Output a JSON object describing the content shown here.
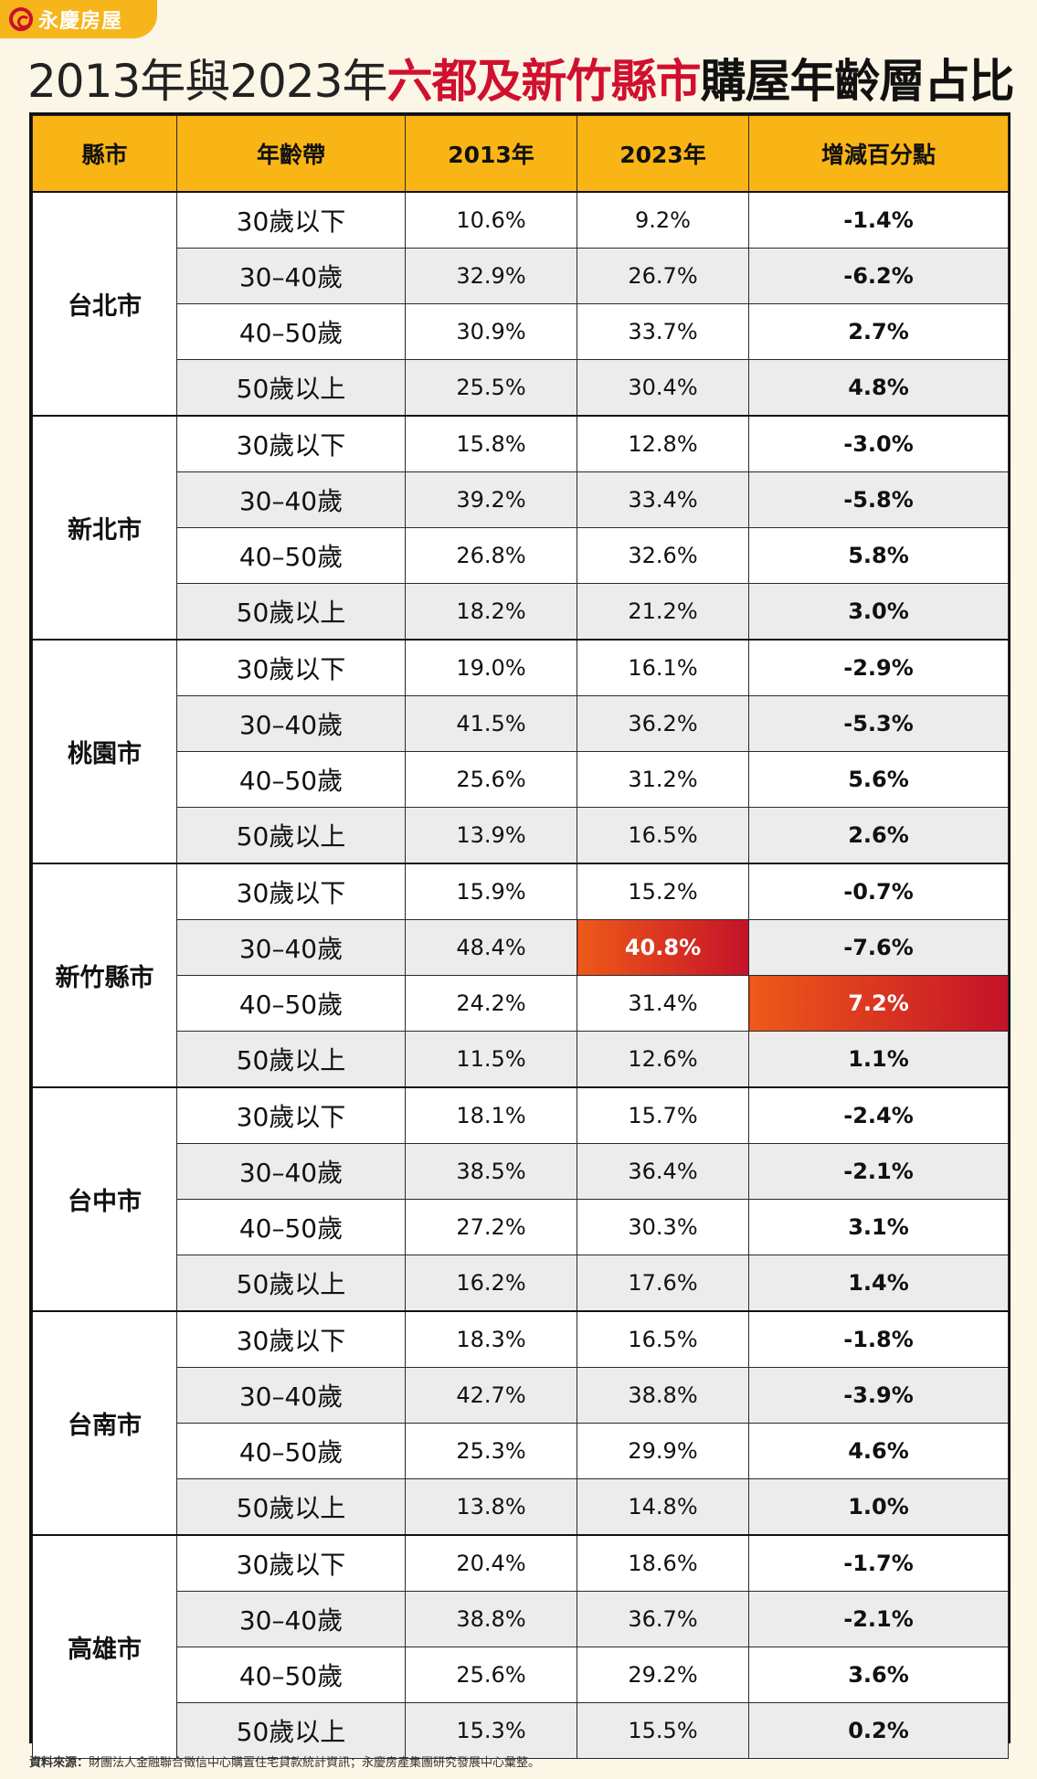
{
  "logo": {
    "text": "永慶房屋"
  },
  "title": {
    "part1": "2013年與2023年",
    "part2": "六都及新竹縣市",
    "part3": "購屋年齡層占比"
  },
  "table": {
    "headers": [
      "縣市",
      "年齡帶",
      "2013年",
      "2023年",
      "增減百分點"
    ],
    "groups": [
      {
        "city": "台北市",
        "rows": [
          {
            "age": "30歲以下",
            "y2013": "10.6%",
            "y2023": "9.2%",
            "change": "-1.4%"
          },
          {
            "age": "30–40歲",
            "y2013": "32.9%",
            "y2023": "26.7%",
            "change": "-6.2%"
          },
          {
            "age": "40–50歲",
            "y2013": "30.9%",
            "y2023": "33.7%",
            "change": "2.7%"
          },
          {
            "age": "50歲以上",
            "y2013": "25.5%",
            "y2023": "30.4%",
            "change": "4.8%"
          }
        ]
      },
      {
        "city": "新北市",
        "rows": [
          {
            "age": "30歲以下",
            "y2013": "15.8%",
            "y2023": "12.8%",
            "change": "-3.0%"
          },
          {
            "age": "30–40歲",
            "y2013": "39.2%",
            "y2023": "33.4%",
            "change": "-5.8%"
          },
          {
            "age": "40–50歲",
            "y2013": "26.8%",
            "y2023": "32.6%",
            "change": "5.8%"
          },
          {
            "age": "50歲以上",
            "y2013": "18.2%",
            "y2023": "21.2%",
            "change": "3.0%"
          }
        ]
      },
      {
        "city": "桃園市",
        "rows": [
          {
            "age": "30歲以下",
            "y2013": "19.0%",
            "y2023": "16.1%",
            "change": "-2.9%"
          },
          {
            "age": "30–40歲",
            "y2013": "41.5%",
            "y2023": "36.2%",
            "change": "-5.3%"
          },
          {
            "age": "40–50歲",
            "y2013": "25.6%",
            "y2023": "31.2%",
            "change": "5.6%"
          },
          {
            "age": "50歲以上",
            "y2013": "13.9%",
            "y2023": "16.5%",
            "change": "2.6%"
          }
        ]
      },
      {
        "city": "新竹縣市",
        "rows": [
          {
            "age": "30歲以下",
            "y2013": "15.9%",
            "y2023": "15.2%",
            "change": "-0.7%"
          },
          {
            "age": "30–40歲",
            "y2013": "48.4%",
            "y2023": "40.8%",
            "change": "-7.6%",
            "highlight": "y2023"
          },
          {
            "age": "40–50歲",
            "y2013": "24.2%",
            "y2023": "31.4%",
            "change": "7.2%",
            "highlight": "change"
          },
          {
            "age": "50歲以上",
            "y2013": "11.5%",
            "y2023": "12.6%",
            "change": "1.1%"
          }
        ]
      },
      {
        "city": "台中市",
        "rows": [
          {
            "age": "30歲以下",
            "y2013": "18.1%",
            "y2023": "15.7%",
            "change": "-2.4%"
          },
          {
            "age": "30–40歲",
            "y2013": "38.5%",
            "y2023": "36.4%",
            "change": "-2.1%"
          },
          {
            "age": "40–50歲",
            "y2013": "27.2%",
            "y2023": "30.3%",
            "change": "3.1%"
          },
          {
            "age": "50歲以上",
            "y2013": "16.2%",
            "y2023": "17.6%",
            "change": "1.4%"
          }
        ]
      },
      {
        "city": "台南市",
        "rows": [
          {
            "age": "30歲以下",
            "y2013": "18.3%",
            "y2023": "16.5%",
            "change": "-1.8%"
          },
          {
            "age": "30–40歲",
            "y2013": "42.7%",
            "y2023": "38.8%",
            "change": "-3.9%"
          },
          {
            "age": "40–50歲",
            "y2013": "25.3%",
            "y2023": "29.9%",
            "change": "4.6%"
          },
          {
            "age": "50歲以上",
            "y2013": "13.8%",
            "y2023": "14.8%",
            "change": "1.0%"
          }
        ]
      },
      {
        "city": "高雄市",
        "rows": [
          {
            "age": "30歲以下",
            "y2013": "20.4%",
            "y2023": "18.6%",
            "change": "-1.7%"
          },
          {
            "age": "30–40歲",
            "y2013": "38.8%",
            "y2023": "36.7%",
            "change": "-2.1%"
          },
          {
            "age": "40–50歲",
            "y2013": "25.6%",
            "y2023": "29.2%",
            "change": "3.6%"
          },
          {
            "age": "50歲以上",
            "y2013": "15.3%",
            "y2023": "15.5%",
            "change": "0.2%"
          }
        ]
      }
    ]
  },
  "source": {
    "label": "資料來源：",
    "text": "財團法人金融聯合徵信中心購置住宅貸款統計資訊；永慶房產集團研究發展中心彙整。"
  },
  "colors": {
    "header_bg": "#f9b515",
    "title_accent": "#d0102e",
    "highlight_start": "#ee5a18",
    "highlight_end": "#c41229",
    "alt_row": "#ececec"
  }
}
